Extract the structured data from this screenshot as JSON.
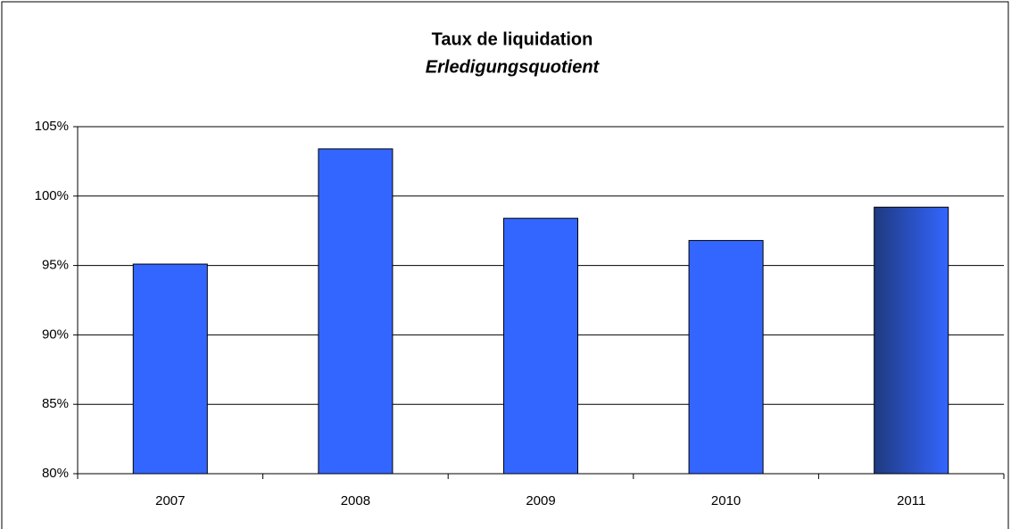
{
  "chart_data": {
    "type": "bar",
    "title": "Taux de liquidation",
    "subtitle": "Erledigungsquotient",
    "categories": [
      "2007",
      "2008",
      "2009",
      "2010",
      "2011"
    ],
    "values": [
      95.1,
      103.4,
      98.4,
      96.8,
      99.2
    ],
    "color": "#3366ff",
    "colors": [
      "#3366ff",
      "#3366ff",
      "#3366ff",
      "#3366ff",
      "#1f3a80"
    ],
    "ylim": [
      80,
      105
    ],
    "yticks": [
      {
        "value": 80,
        "label": "80%"
      },
      {
        "value": 85,
        "label": "85%"
      },
      {
        "value": 90,
        "label": "90%"
      },
      {
        "value": 95,
        "label": "95%"
      },
      {
        "value": 100,
        "label": "100%"
      },
      {
        "value": 105,
        "label": "105%"
      }
    ],
    "grid": true
  }
}
